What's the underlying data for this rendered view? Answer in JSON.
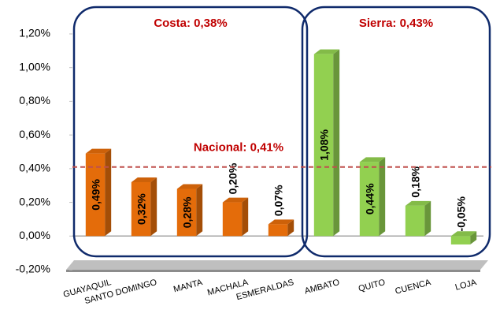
{
  "chart_data": {
    "type": "bar",
    "categories": [
      "GUAYAQUIL",
      "SANTO DOMINGO",
      "MANTA",
      "MACHALA",
      "ESMERALDAS",
      "AMBATO",
      "QUITO",
      "CUENCA",
      "LOJA"
    ],
    "values": [
      0.49,
      0.32,
      0.28,
      0.2,
      0.07,
      1.08,
      0.44,
      0.18,
      -0.05
    ],
    "value_labels": [
      "0,49%",
      "0,32%",
      "0,28%",
      "0,20%",
      "0,07%",
      "1,08%",
      "0,44%",
      "0,18%",
      "-0,05%"
    ],
    "colors": [
      "#e46c0a",
      "#e46c0a",
      "#e46c0a",
      "#e46c0a",
      "#e46c0a",
      "#92d050",
      "#92d050",
      "#92d050",
      "#92d050"
    ],
    "ylim": [
      -0.2,
      1.2
    ],
    "yticks": [
      {
        "value": -0.2,
        "label": "-0,20%"
      },
      {
        "value": 0,
        "label": "0,00%"
      },
      {
        "value": 0.2,
        "label": "0,20%"
      },
      {
        "value": 0.4,
        "label": "0,40%"
      },
      {
        "value": 0.6,
        "label": "0,60%"
      },
      {
        "value": 0.8,
        "label": "0,80%"
      },
      {
        "value": 1.0,
        "label": "1,00%"
      },
      {
        "value": 1.2,
        "label": "1,20%"
      }
    ],
    "grid": false,
    "groups": [
      {
        "label": "Costa: 0,38%",
        "color": "#e46c0a"
      },
      {
        "label": "Sierra: 0,43%",
        "color": "#92d050"
      }
    ],
    "reference_line": {
      "value": 0.41,
      "label": "Nacional: 0,41%",
      "color": "#c0504d"
    }
  }
}
